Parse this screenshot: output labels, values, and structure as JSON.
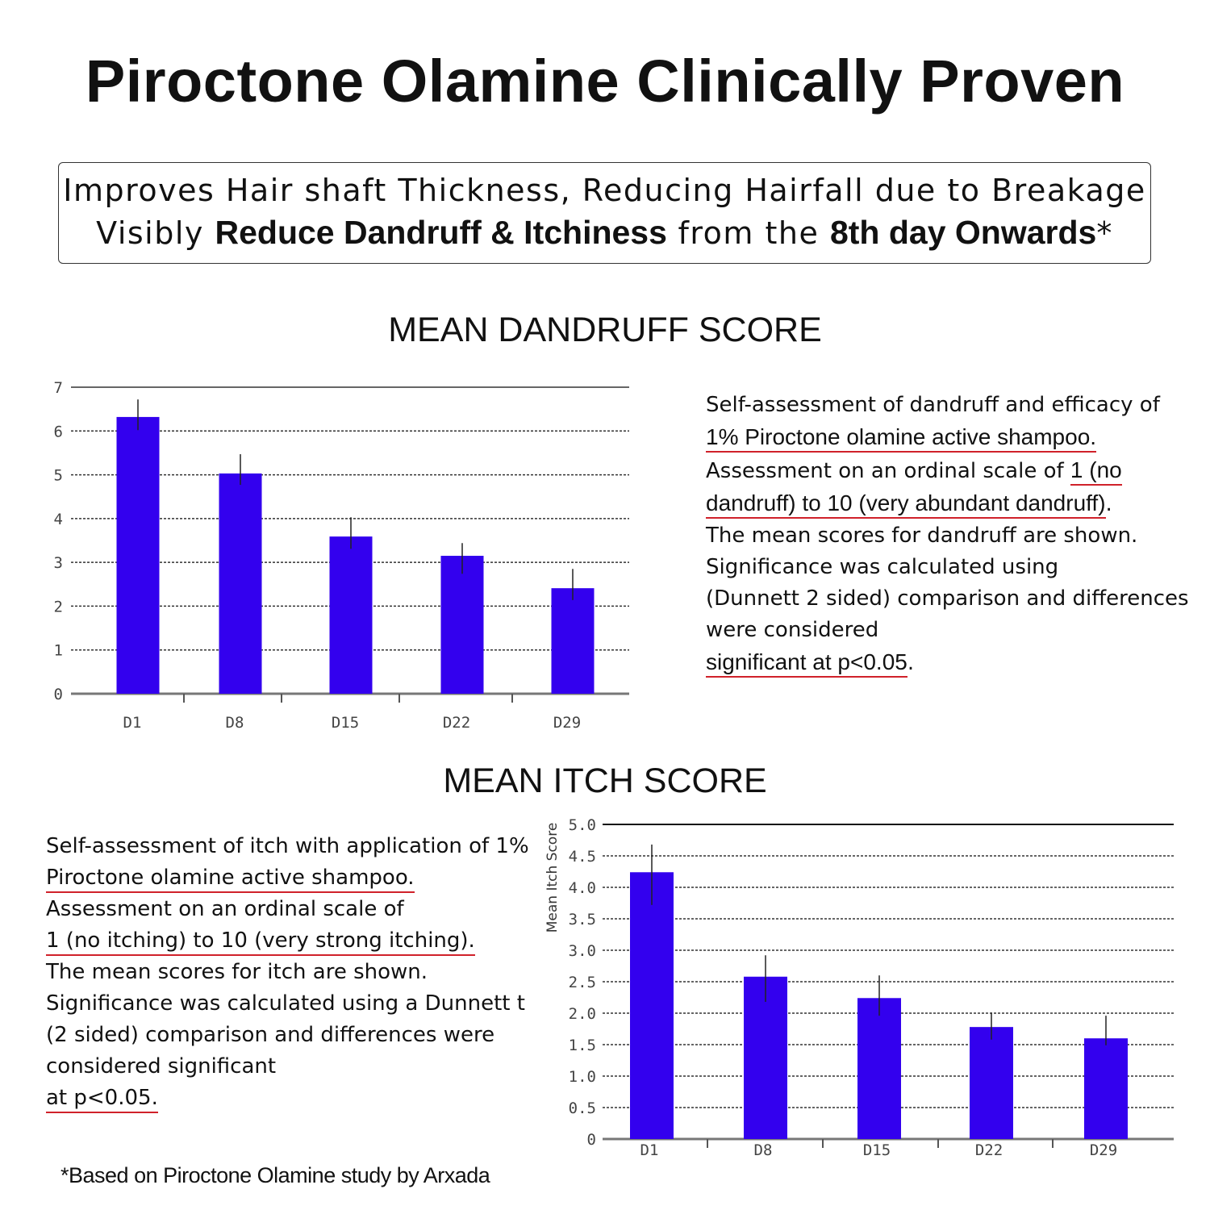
{
  "title": "Piroctone Olamine Clinically Proven",
  "banner": {
    "line1": "Improves Hair shaft Thickness, Reducing Hairfall due to Breakage",
    "line2_parts": [
      {
        "text": "Visibly ",
        "bold": false
      },
      {
        "text": "Reduce Dandruff & Itchiness",
        "bold": true
      },
      {
        "text": " from the ",
        "bold": false
      },
      {
        "text": "8th day Onwards",
        "bold": true
      },
      {
        "text": "*",
        "bold": false
      }
    ]
  },
  "dandruff_text": [
    [
      {
        "text": "Self-assessment of dandruff and efficacy of"
      }
    ],
    [
      {
        "text": "1% Piroctone olamine active shampoo.",
        "underline": true,
        "em": true
      }
    ],
    [
      {
        "text": "Assessment on an ordinal scale of "
      },
      {
        "text": "1 (no",
        "underline": true,
        "em": true
      }
    ],
    [
      {
        "text": "dandruff) to 10 (very abundant dandruff)",
        "underline": true,
        "em": true
      },
      {
        "text": "."
      }
    ],
    [
      {
        "text": "The mean scores for dandruff are shown."
      }
    ],
    [
      {
        "text": "Significance was calculated using"
      }
    ],
    [
      {
        "text": "(Dunnett 2 sided) comparison and differences"
      }
    ],
    [
      {
        "text": "were considered"
      }
    ],
    [
      {
        "text": "significant at p<0.05",
        "underline": true,
        "em": true
      },
      {
        "text": "."
      }
    ]
  ],
  "itch_text": [
    [
      {
        "text": "Self-assessment of itch with application of 1%"
      }
    ],
    [
      {
        "text": "Piroctone olamine active shampoo.",
        "underline": true
      }
    ],
    [
      {
        "text": "Assessment on an ordinal scale of"
      }
    ],
    [
      {
        "text": "1 (no itching) to 10 (very strong itching).",
        "underline": true
      }
    ],
    [
      {
        "text": "The mean scores for itch are shown."
      }
    ],
    [
      {
        "text": "Significance was calculated using a Dunnett t"
      }
    ],
    [
      {
        "text": "(2 sided) comparison and differences were"
      }
    ],
    [
      {
        "text": "considered significant"
      }
    ],
    [
      {
        "text": "at p<0.05.",
        "underline": true
      }
    ]
  ],
  "footnote": "*Based on Piroctone Olamine study by Arxada",
  "colors": {
    "bar": "#3300ee",
    "underline": "#d0212a"
  },
  "chart_data": [
    {
      "type": "bar",
      "title": "MEAN DANDRUFF SCORE",
      "xlabel": "",
      "ylabel": "",
      "categories": [
        "D1",
        "D8",
        "D15",
        "D22",
        "D29"
      ],
      "values": [
        6.32,
        5.03,
        3.59,
        3.15,
        2.41
      ],
      "error_low": [
        6.02,
        4.77,
        3.31,
        2.74,
        2.14
      ],
      "error_high": [
        6.72,
        5.47,
        4.03,
        3.44,
        2.85
      ],
      "ylim": [
        0,
        7
      ],
      "yticks": [
        "0",
        "1",
        "2",
        "3",
        "4",
        "5",
        "6",
        "7"
      ],
      "grid": true
    },
    {
      "type": "bar",
      "title": "MEAN ITCH SCORE",
      "xlabel": "",
      "ylabel": "Mean Itch Score",
      "categories": [
        "D1",
        "D8",
        "D15",
        "D22",
        "D29"
      ],
      "values": [
        4.24,
        2.58,
        2.24,
        1.78,
        1.6
      ],
      "error_low": [
        3.72,
        2.18,
        1.96,
        1.58,
        1.49
      ],
      "error_high": [
        4.68,
        2.92,
        2.6,
        2.01,
        1.96
      ],
      "ylim": [
        0,
        5
      ],
      "yticks": [
        "0",
        "0.5",
        "1.0",
        "1.5",
        "2.0",
        "2.5",
        "3.0",
        "3.5",
        "4.0",
        "4.5",
        "5.0"
      ],
      "grid": true
    }
  ]
}
